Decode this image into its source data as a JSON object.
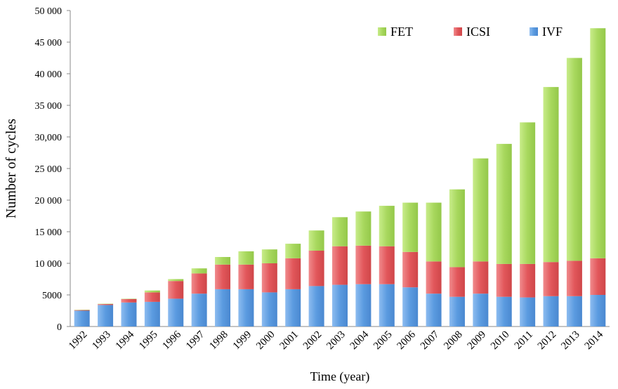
{
  "chart_data": {
    "type": "bar",
    "stacked": true,
    "x_label": "Time (year)",
    "y_label": "Number of cycles",
    "categories": [
      "1992",
      "1993",
      "1994",
      "1995",
      "1996",
      "1997",
      "1998",
      "1999",
      "2000",
      "2001",
      "2002",
      "2003",
      "2004",
      "2005",
      "2006",
      "2007",
      "2008",
      "2009",
      "2010",
      "2011",
      "2012",
      "2013",
      "2014"
    ],
    "series": [
      {
        "name": "IVF",
        "color": "#5b9be0",
        "values": [
          2500,
          3400,
          3800,
          3900,
          4400,
          5200,
          5900,
          5900,
          5400,
          5900,
          6400,
          6600,
          6700,
          6700,
          6200,
          5200,
          4700,
          5200,
          4700,
          4600,
          4800,
          4800,
          5000
        ]
      },
      {
        "name": "ICSI",
        "color": "#e2575b",
        "values": [
          100,
          150,
          550,
          1500,
          2800,
          3200,
          3900,
          3900,
          4600,
          4900,
          5600,
          6100,
          6100,
          6000,
          5600,
          5100,
          4700,
          5100,
          5200,
          5300,
          5400,
          5600,
          5800
        ]
      },
      {
        "name": "FET",
        "color": "#a8d85e",
        "values": [
          50,
          50,
          50,
          300,
          300,
          800,
          1200,
          2100,
          2200,
          2300,
          3200,
          4600,
          5400,
          6400,
          7800,
          9300,
          12300,
          16300,
          19000,
          22400,
          27700,
          32100,
          36400
        ]
      }
    ],
    "ylim": [
      0,
      50000
    ],
    "yticks": [
      0,
      5000,
      {
        "value": 10000,
        "label": "10 000"
      },
      {
        "value": 15000,
        "label": "15 000"
      },
      {
        "value": 20000,
        "label": "20 000"
      },
      {
        "value": 25000,
        "label": "25 000"
      },
      {
        "value": 30000,
        "label": "30,000"
      },
      {
        "value": 35000,
        "label": "35 000"
      },
      {
        "value": 40000,
        "label": "40 000"
      },
      {
        "value": 45000,
        "label": "45 000"
      },
      {
        "value": 50000,
        "label": "50 000"
      }
    ],
    "legend_position": "top-right"
  }
}
